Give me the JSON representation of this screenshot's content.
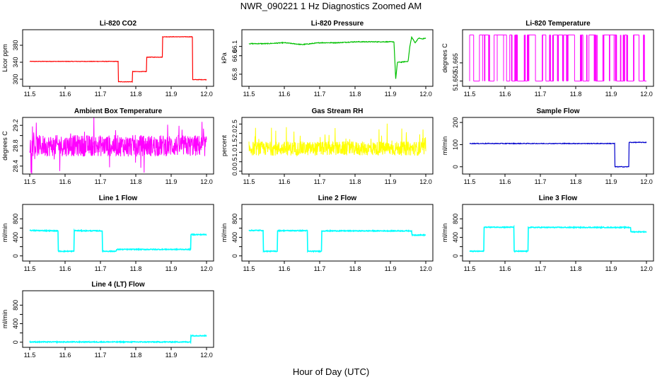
{
  "figure": {
    "title": "NWR_090221  1 Hz Diagnostics Zoomed AM",
    "xlabel": "Hour of Day (UTC)"
  },
  "chart_data": [
    {
      "id": "co2",
      "type": "line",
      "title": "Li-820 CO2",
      "ylabel": "Licor ppm",
      "color": "#ff0000",
      "xlim": [
        11.5,
        12.0
      ],
      "ylim": [
        290,
        410
      ],
      "xticks": [
        11.5,
        11.6,
        11.7,
        11.8,
        11.9,
        12.0
      ],
      "xtick_labels": [
        "11.5",
        "11.6",
        "11.7",
        "11.8",
        "11.9",
        "12.0"
      ],
      "yticks": [
        300,
        340,
        380
      ],
      "ytick_labels": [
        "300",
        "340",
        "380"
      ],
      "series": [
        {
          "x": [
            11.5,
            11.75,
            11.751,
            11.79,
            11.791,
            11.83,
            11.831,
            11.875,
            11.876,
            11.96,
            11.961,
            12.0
          ],
          "y": [
            342,
            342,
            294,
            294,
            318,
            318,
            352,
            352,
            400,
            400,
            299,
            299
          ]
        }
      ]
    },
    {
      "id": "pressure",
      "type": "line",
      "title": "Li-820 Pressure",
      "ylabel": "kPa",
      "color": "#00c000",
      "xlim": [
        11.5,
        12.0
      ],
      "ylim": [
        65.7,
        66.25
      ],
      "xticks": [
        11.5,
        11.6,
        11.7,
        11.8,
        11.9,
        12.0
      ],
      "xtick_labels": [
        "11.5",
        "11.6",
        "11.7",
        "11.8",
        "11.9",
        "12.0"
      ],
      "yticks": [
        65.8,
        66.0,
        66.1
      ],
      "ytick_labels": [
        "65.8",
        "66.0",
        "66.1"
      ],
      "series": [
        {
          "x": [
            11.5,
            11.55,
            11.6,
            11.65,
            11.7,
            11.75,
            11.8,
            11.85,
            11.9,
            11.91,
            11.915,
            11.92,
            11.93,
            11.95,
            11.955,
            11.96,
            11.97,
            11.98,
            11.99,
            12.0
          ],
          "y": [
            66.13,
            66.13,
            66.14,
            66.12,
            66.14,
            66.14,
            66.15,
            66.15,
            66.15,
            66.15,
            65.75,
            65.93,
            65.93,
            65.94,
            66.1,
            66.2,
            66.14,
            66.19,
            66.18,
            66.19
          ]
        }
      ]
    },
    {
      "id": "licor_temp",
      "type": "line",
      "title": "Li-820 Temperature",
      "ylabel": "degrees C",
      "color": "#ff00ff",
      "xlim": [
        11.5,
        12.0
      ],
      "ylim": [
        51.648,
        51.69
      ],
      "xticks": [
        11.5,
        11.6,
        11.7,
        11.8,
        11.9,
        12.0
      ],
      "xtick_labels": [
        "11.5",
        "11.6",
        "11.7",
        "11.8",
        "11.9",
        "12.0"
      ],
      "yticks": [
        51.65,
        51.665
      ],
      "ytick_labels": [
        "51.650",
        "51.665"
      ],
      "series": [
        {
          "x": [
            11.5,
            12.0
          ],
          "y": [
            51.65,
            51.688
          ]
        }
      ]
    },
    {
      "id": "box_temp",
      "type": "line",
      "title": "Ambient Box Temperature",
      "ylabel": "degrees C",
      "color": "#ff00ff",
      "xlim": [
        11.5,
        12.0
      ],
      "ylim": [
        28.3,
        29.3
      ],
      "xticks": [
        11.5,
        11.6,
        11.7,
        11.8,
        11.9,
        12.0
      ],
      "xtick_labels": [
        "11.5",
        "11.6",
        "11.7",
        "11.8",
        "11.9",
        "12.0"
      ],
      "yticks": [
        28.4,
        28.6,
        28.8,
        29.0,
        29.2
      ],
      "ytick_labels": [
        "28.4",
        "",
        "28.8",
        "",
        "29.2"
      ],
      "series": [
        {
          "x": [
            11.5,
            12.0
          ],
          "y": [
            28.8,
            28.8
          ]
        }
      ]
    },
    {
      "id": "rh",
      "type": "line",
      "title": "Gas Stream RH",
      "ylabel": "percent",
      "color": "#ffff00",
      "xlim": [
        11.5,
        12.0
      ],
      "ylim": [
        0,
        2.7
      ],
      "xticks": [
        11.5,
        11.6,
        11.7,
        11.8,
        11.9,
        12.0
      ],
      "xtick_labels": [
        "11.5",
        "11.6",
        "11.7",
        "11.8",
        "11.9",
        "12.0"
      ],
      "yticks": [
        0.0,
        0.5,
        1.0,
        1.5,
        2.0,
        2.5
      ],
      "ytick_labels": [
        "0.0",
        "0.5",
        "1.0",
        "1.5",
        "2.0",
        "2.5"
      ],
      "series": [
        {
          "x": [
            11.5,
            12.0
          ],
          "y": [
            1.2,
            1.2
          ]
        }
      ]
    },
    {
      "id": "sample_flow",
      "type": "line",
      "title": "Sample Flow",
      "ylabel": "ml/min",
      "color": "#0000cc",
      "xlim": [
        11.5,
        12.0
      ],
      "ylim": [
        -20,
        210
      ],
      "xticks": [
        11.5,
        11.6,
        11.7,
        11.8,
        11.9,
        12.0
      ],
      "xtick_labels": [
        "11.5",
        "11.6",
        "11.7",
        "11.8",
        "11.9",
        "12.0"
      ],
      "yticks": [
        0,
        100,
        200
      ],
      "ytick_labels": [
        "0",
        "100",
        "200"
      ],
      "series": [
        {
          "x": [
            11.5,
            11.91,
            11.911,
            11.95,
            11.951,
            12.0
          ],
          "y": [
            105,
            105,
            0,
            0,
            110,
            110
          ]
        }
      ]
    },
    {
      "id": "line1",
      "type": "line",
      "title": "Line 1 Flow",
      "ylabel": "ml/min",
      "color": "#00ffff",
      "xlim": [
        11.5,
        12.0
      ],
      "ylim": [
        -50,
        1050
      ],
      "xticks": [
        11.5,
        11.6,
        11.7,
        11.8,
        11.9,
        12.0
      ],
      "xtick_labels": [
        "11.5",
        "11.6",
        "11.7",
        "11.8",
        "11.9",
        "12.0"
      ],
      "yticks": [
        0,
        200,
        400,
        600,
        800
      ],
      "ytick_labels": [
        "0",
        "",
        "400",
        "",
        "800"
      ],
      "series": [
        {
          "x": [
            11.5,
            11.58,
            11.581,
            11.625,
            11.626,
            11.705,
            11.706,
            11.745,
            11.746,
            11.955,
            11.956,
            12.0
          ],
          "y": [
            550,
            540,
            100,
            100,
            545,
            540,
            100,
            100,
            140,
            140,
            460,
            460
          ]
        }
      ]
    },
    {
      "id": "line2",
      "type": "line",
      "title": "Line 2 Flow",
      "ylabel": "ml/min",
      "color": "#00ffff",
      "xlim": [
        11.5,
        12.0
      ],
      "ylim": [
        -50,
        1050
      ],
      "xticks": [
        11.5,
        11.6,
        11.7,
        11.8,
        11.9,
        12.0
      ],
      "xtick_labels": [
        "11.5",
        "11.6",
        "11.7",
        "11.8",
        "11.9",
        "12.0"
      ],
      "yticks": [
        0,
        200,
        400,
        600,
        800
      ],
      "ytick_labels": [
        "0",
        "",
        "400",
        "",
        "800"
      ],
      "series": [
        {
          "x": [
            11.5,
            11.54,
            11.541,
            11.58,
            11.581,
            11.665,
            11.666,
            11.705,
            11.706,
            11.96,
            11.961,
            12.0
          ],
          "y": [
            550,
            550,
            100,
            100,
            545,
            545,
            100,
            100,
            540,
            540,
            450,
            450
          ]
        }
      ]
    },
    {
      "id": "line3",
      "type": "line",
      "title": "Line 3 Flow",
      "ylabel": "ml/min",
      "color": "#00ffff",
      "xlim": [
        11.5,
        12.0
      ],
      "ylim": [
        -50,
        1050
      ],
      "xticks": [
        11.5,
        11.6,
        11.7,
        11.8,
        11.9,
        12.0
      ],
      "xtick_labels": [
        "11.5",
        "11.6",
        "11.7",
        "11.8",
        "11.9",
        "12.0"
      ],
      "yticks": [
        0,
        200,
        400,
        600,
        800
      ],
      "ytick_labels": [
        "0",
        "",
        "400",
        "",
        "800"
      ],
      "series": [
        {
          "x": [
            11.5,
            11.54,
            11.541,
            11.625,
            11.626,
            11.665,
            11.666,
            11.955,
            11.956,
            12.0
          ],
          "y": [
            100,
            100,
            620,
            620,
            100,
            100,
            615,
            615,
            520,
            520
          ]
        }
      ]
    },
    {
      "id": "line4",
      "type": "line",
      "title": "Line 4 (LT) Flow",
      "ylabel": "ml/min",
      "color": "#00ffff",
      "xlim": [
        11.5,
        12.0
      ],
      "ylim": [
        -50,
        1050
      ],
      "xticks": [
        11.5,
        11.6,
        11.7,
        11.8,
        11.9,
        12.0
      ],
      "xtick_labels": [
        "11.5",
        "11.6",
        "11.7",
        "11.8",
        "11.9",
        "12.0"
      ],
      "yticks": [
        0,
        200,
        400,
        600,
        800
      ],
      "ytick_labels": [
        "0",
        "",
        "400",
        "",
        "800"
      ],
      "series": [
        {
          "x": [
            11.5,
            11.955,
            11.956,
            12.0
          ],
          "y": [
            5,
            5,
            140,
            140
          ]
        }
      ]
    }
  ]
}
